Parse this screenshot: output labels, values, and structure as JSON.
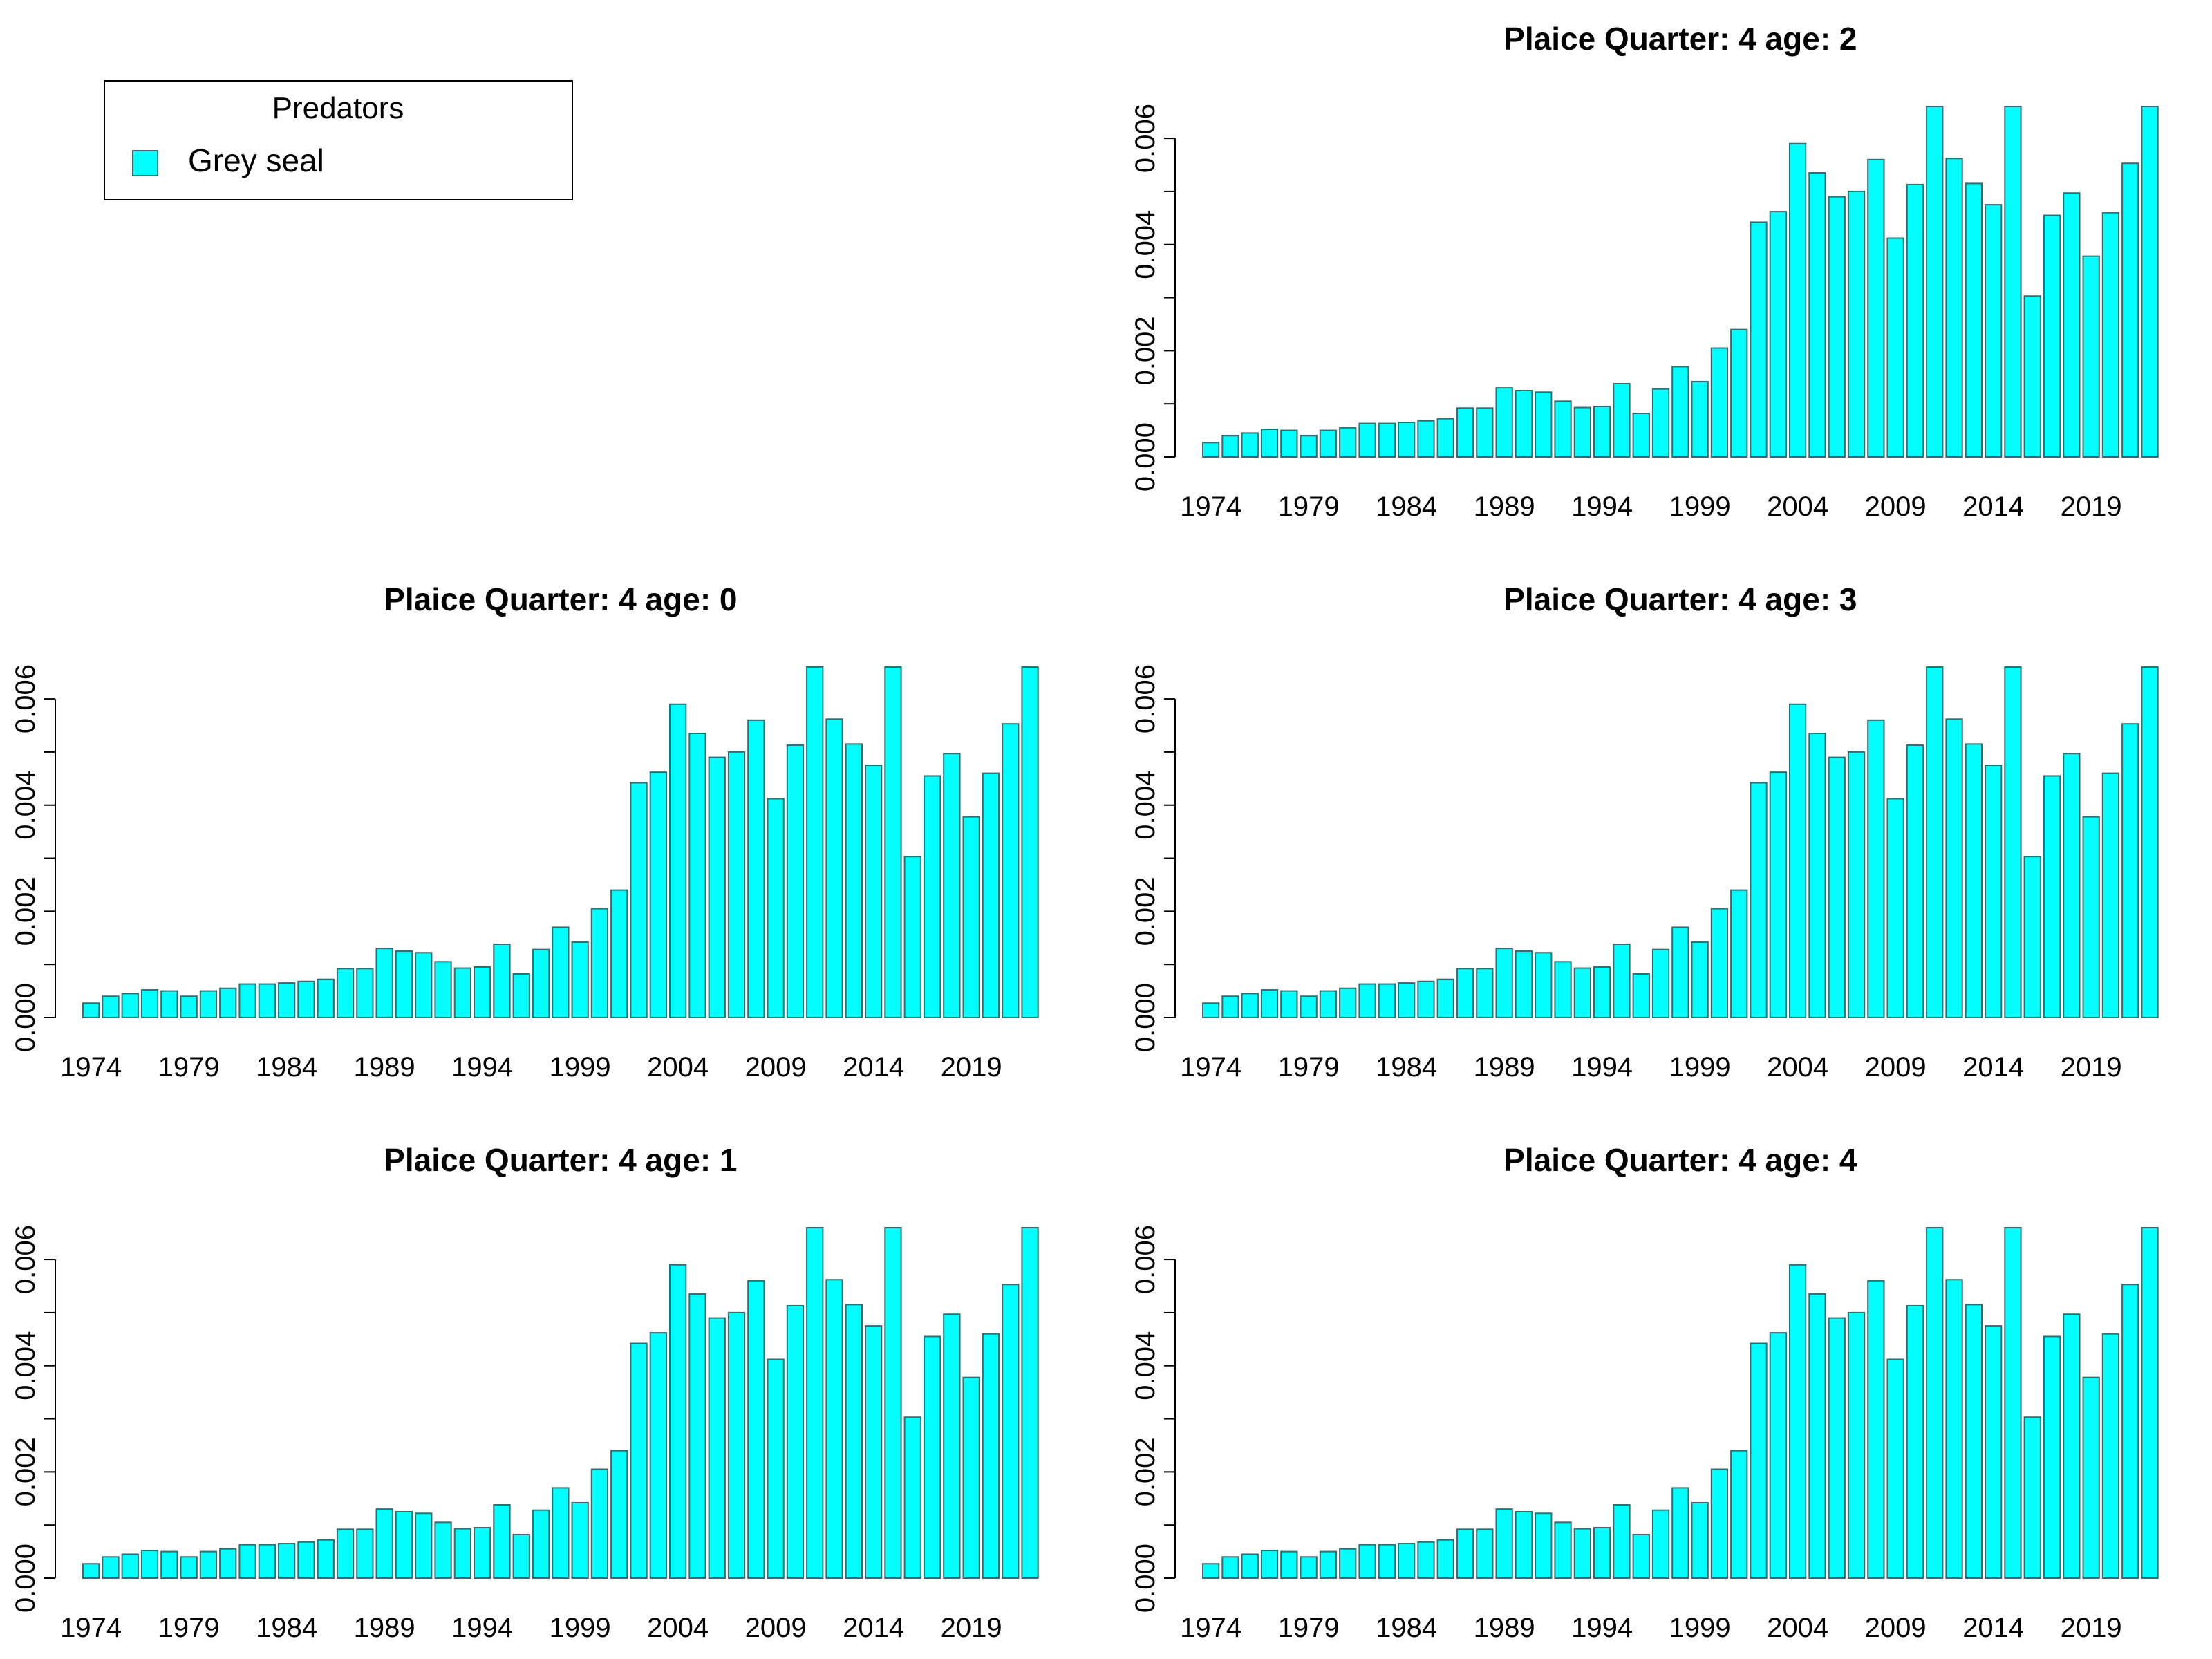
{
  "legend": {
    "title": "Predators",
    "entries": [
      {
        "label": "Grey seal",
        "color": "#00FFFF"
      }
    ]
  },
  "style": {
    "bar_fill": "#00FFFF",
    "bar_stroke": "#2F6F6F"
  },
  "chart_data": [
    {
      "type": "bar",
      "panel": "top-right",
      "title": "Plaice  Quarter: 4  age: 2",
      "categories": [
        "1974",
        "1975",
        "1976",
        "1977",
        "1978",
        "1979",
        "1980",
        "1981",
        "1982",
        "1983",
        "1984",
        "1985",
        "1986",
        "1987",
        "1988",
        "1989",
        "1990",
        "1991",
        "1992",
        "1993",
        "1994",
        "1995",
        "1996",
        "1997",
        "1998",
        "1999",
        "2000",
        "2001",
        "2002",
        "2003",
        "2004",
        "2005",
        "2006",
        "2007",
        "2008",
        "2009",
        "2010",
        "2011",
        "2012",
        "2013",
        "2014",
        "2015",
        "2016",
        "2017",
        "2018",
        "2019",
        "2020",
        "2021",
        "2022"
      ],
      "x_tick_labels": [
        "1974",
        "1979",
        "1984",
        "1989",
        "1994",
        "1999",
        "2004",
        "2009",
        "2014",
        "2019"
      ],
      "y_tick_labels": [
        "0.000",
        "0.002",
        "0.004",
        "0.006"
      ],
      "ylim": [
        0,
        0.0066
      ],
      "grid": false,
      "series": [
        {
          "values": [
            0.00027,
            0.0004,
            0.00045,
            0.00052,
            0.0005,
            0.0004,
            0.0005,
            0.00055,
            0.00063,
            0.00063,
            0.00065,
            0.00068,
            0.00072,
            0.00092,
            0.00092,
            0.0013,
            0.00125,
            0.00122,
            0.00105,
            0.00093,
            0.00095,
            0.00138,
            0.00082,
            0.00128,
            0.0017,
            0.00142,
            0.00205,
            0.0024,
            0.00442,
            0.00462,
            0.0059,
            0.00535,
            0.0049,
            0.005,
            0.0056,
            0.00412,
            0.00513,
            0.0066,
            0.00562,
            0.00515,
            0.00475,
            0.0066,
            0.00303,
            0.00455,
            0.00497,
            0.00378,
            0.0046,
            0.00553,
            0.0066
          ]
        }
      ]
    },
    {
      "type": "bar",
      "panel": "middle-left",
      "title": "Plaice  Quarter: 4  age: 0",
      "categories": [
        "1974",
        "1975",
        "1976",
        "1977",
        "1978",
        "1979",
        "1980",
        "1981",
        "1982",
        "1983",
        "1984",
        "1985",
        "1986",
        "1987",
        "1988",
        "1989",
        "1990",
        "1991",
        "1992",
        "1993",
        "1994",
        "1995",
        "1996",
        "1997",
        "1998",
        "1999",
        "2000",
        "2001",
        "2002",
        "2003",
        "2004",
        "2005",
        "2006",
        "2007",
        "2008",
        "2009",
        "2010",
        "2011",
        "2012",
        "2013",
        "2014",
        "2015",
        "2016",
        "2017",
        "2018",
        "2019",
        "2020",
        "2021",
        "2022"
      ],
      "x_tick_labels": [
        "1974",
        "1979",
        "1984",
        "1989",
        "1994",
        "1999",
        "2004",
        "2009",
        "2014",
        "2019"
      ],
      "y_tick_labels": [
        "0.000",
        "0.002",
        "0.004",
        "0.006"
      ],
      "ylim": [
        0,
        0.0066
      ],
      "grid": false,
      "series": [
        {
          "values": [
            0.00027,
            0.0004,
            0.00045,
            0.00052,
            0.0005,
            0.0004,
            0.0005,
            0.00055,
            0.00063,
            0.00063,
            0.00065,
            0.00068,
            0.00072,
            0.00092,
            0.00092,
            0.0013,
            0.00125,
            0.00122,
            0.00105,
            0.00093,
            0.00095,
            0.00138,
            0.00082,
            0.00128,
            0.0017,
            0.00142,
            0.00205,
            0.0024,
            0.00442,
            0.00462,
            0.0059,
            0.00535,
            0.0049,
            0.005,
            0.0056,
            0.00412,
            0.00513,
            0.0066,
            0.00562,
            0.00515,
            0.00475,
            0.0066,
            0.00303,
            0.00455,
            0.00497,
            0.00378,
            0.0046,
            0.00553,
            0.0066
          ]
        }
      ]
    },
    {
      "type": "bar",
      "panel": "middle-right",
      "title": "Plaice  Quarter: 4  age: 3",
      "categories": [
        "1974",
        "1975",
        "1976",
        "1977",
        "1978",
        "1979",
        "1980",
        "1981",
        "1982",
        "1983",
        "1984",
        "1985",
        "1986",
        "1987",
        "1988",
        "1989",
        "1990",
        "1991",
        "1992",
        "1993",
        "1994",
        "1995",
        "1996",
        "1997",
        "1998",
        "1999",
        "2000",
        "2001",
        "2002",
        "2003",
        "2004",
        "2005",
        "2006",
        "2007",
        "2008",
        "2009",
        "2010",
        "2011",
        "2012",
        "2013",
        "2014",
        "2015",
        "2016",
        "2017",
        "2018",
        "2019",
        "2020",
        "2021",
        "2022"
      ],
      "x_tick_labels": [
        "1974",
        "1979",
        "1984",
        "1989",
        "1994",
        "1999",
        "2004",
        "2009",
        "2014",
        "2019"
      ],
      "y_tick_labels": [
        "0.000",
        "0.002",
        "0.004",
        "0.006"
      ],
      "ylim": [
        0,
        0.0066
      ],
      "grid": false,
      "series": [
        {
          "values": [
            0.00027,
            0.0004,
            0.00045,
            0.00052,
            0.0005,
            0.0004,
            0.0005,
            0.00055,
            0.00063,
            0.00063,
            0.00065,
            0.00068,
            0.00072,
            0.00092,
            0.00092,
            0.0013,
            0.00125,
            0.00122,
            0.00105,
            0.00093,
            0.00095,
            0.00138,
            0.00082,
            0.00128,
            0.0017,
            0.00142,
            0.00205,
            0.0024,
            0.00442,
            0.00462,
            0.0059,
            0.00535,
            0.0049,
            0.005,
            0.0056,
            0.00412,
            0.00513,
            0.0066,
            0.00562,
            0.00515,
            0.00475,
            0.0066,
            0.00303,
            0.00455,
            0.00497,
            0.00378,
            0.0046,
            0.00553,
            0.0066
          ]
        }
      ]
    },
    {
      "type": "bar",
      "panel": "bottom-left",
      "title": "Plaice  Quarter: 4  age: 1",
      "categories": [
        "1974",
        "1975",
        "1976",
        "1977",
        "1978",
        "1979",
        "1980",
        "1981",
        "1982",
        "1983",
        "1984",
        "1985",
        "1986",
        "1987",
        "1988",
        "1989",
        "1990",
        "1991",
        "1992",
        "1993",
        "1994",
        "1995",
        "1996",
        "1997",
        "1998",
        "1999",
        "2000",
        "2001",
        "2002",
        "2003",
        "2004",
        "2005",
        "2006",
        "2007",
        "2008",
        "2009",
        "2010",
        "2011",
        "2012",
        "2013",
        "2014",
        "2015",
        "2016",
        "2017",
        "2018",
        "2019",
        "2020",
        "2021",
        "2022"
      ],
      "x_tick_labels": [
        "1974",
        "1979",
        "1984",
        "1989",
        "1994",
        "1999",
        "2004",
        "2009",
        "2014",
        "2019"
      ],
      "y_tick_labels": [
        "0.000",
        "0.002",
        "0.004",
        "0.006"
      ],
      "ylim": [
        0,
        0.0066
      ],
      "grid": false,
      "series": [
        {
          "values": [
            0.00027,
            0.0004,
            0.00045,
            0.00052,
            0.0005,
            0.0004,
            0.0005,
            0.00055,
            0.00063,
            0.00063,
            0.00065,
            0.00068,
            0.00072,
            0.00092,
            0.00092,
            0.0013,
            0.00125,
            0.00122,
            0.00105,
            0.00093,
            0.00095,
            0.00138,
            0.00082,
            0.00128,
            0.0017,
            0.00142,
            0.00205,
            0.0024,
            0.00442,
            0.00462,
            0.0059,
            0.00535,
            0.0049,
            0.005,
            0.0056,
            0.00412,
            0.00513,
            0.0066,
            0.00562,
            0.00515,
            0.00475,
            0.0066,
            0.00303,
            0.00455,
            0.00497,
            0.00378,
            0.0046,
            0.00553,
            0.0066
          ]
        }
      ]
    },
    {
      "type": "bar",
      "panel": "bottom-right",
      "title": "Plaice  Quarter: 4  age: 4",
      "categories": [
        "1974",
        "1975",
        "1976",
        "1977",
        "1978",
        "1979",
        "1980",
        "1981",
        "1982",
        "1983",
        "1984",
        "1985",
        "1986",
        "1987",
        "1988",
        "1989",
        "1990",
        "1991",
        "1992",
        "1993",
        "1994",
        "1995",
        "1996",
        "1997",
        "1998",
        "1999",
        "2000",
        "2001",
        "2002",
        "2003",
        "2004",
        "2005",
        "2006",
        "2007",
        "2008",
        "2009",
        "2010",
        "2011",
        "2012",
        "2013",
        "2014",
        "2015",
        "2016",
        "2017",
        "2018",
        "2019",
        "2020",
        "2021",
        "2022"
      ],
      "x_tick_labels": [
        "1974",
        "1979",
        "1984",
        "1989",
        "1994",
        "1999",
        "2004",
        "2009",
        "2014",
        "2019"
      ],
      "y_tick_labels": [
        "0.000",
        "0.002",
        "0.004",
        "0.006"
      ],
      "ylim": [
        0,
        0.0066
      ],
      "grid": false,
      "series": [
        {
          "values": [
            0.00027,
            0.0004,
            0.00045,
            0.00052,
            0.0005,
            0.0004,
            0.0005,
            0.00055,
            0.00063,
            0.00063,
            0.00065,
            0.00068,
            0.00072,
            0.00092,
            0.00092,
            0.0013,
            0.00125,
            0.00122,
            0.00105,
            0.00093,
            0.00095,
            0.00138,
            0.00082,
            0.00128,
            0.0017,
            0.00142,
            0.00205,
            0.0024,
            0.00442,
            0.00462,
            0.0059,
            0.00535,
            0.0049,
            0.005,
            0.0056,
            0.00412,
            0.00513,
            0.0066,
            0.00562,
            0.00515,
            0.00475,
            0.0066,
            0.00303,
            0.00455,
            0.00497,
            0.00378,
            0.0046,
            0.00553,
            0.0066
          ]
        }
      ]
    }
  ]
}
